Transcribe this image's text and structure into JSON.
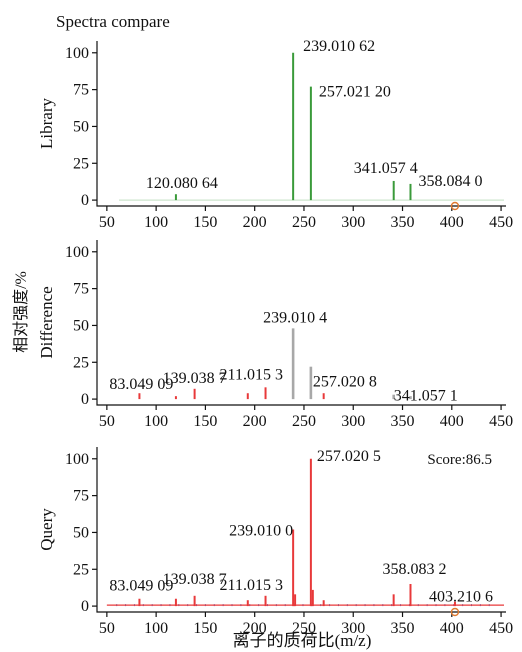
{
  "title": "Spectra compare",
  "shared_ylabel": "相对强度/%",
  "shared_xlabel": "离子的质荷比(m/z)",
  "colors": {
    "library": "#3a9a3a",
    "difference": "#a8a8a8",
    "query": "#e8393a",
    "query_minor": "#4a67c8",
    "axis": "#111111"
  },
  "chart_data": [
    {
      "type": "bar",
      "panel": "library",
      "ylabel": "Library",
      "xlim": [
        40,
        455
      ],
      "ylim": [
        -4,
        108
      ],
      "xticks": [
        50,
        100,
        150,
        200,
        250,
        300,
        350,
        400,
        450
      ],
      "yticks": [
        0,
        25,
        50,
        75,
        100
      ],
      "peaks": [
        {
          "x": 120.08064,
          "y": 4
        },
        {
          "x": 239.01062,
          "y": 100
        },
        {
          "x": 257.0212,
          "y": 77
        },
        {
          "x": 341.0574,
          "y": 13
        },
        {
          "x": 358.084,
          "y": 11
        }
      ],
      "labels": [
        {
          "text": "120.080 64",
          "x": 120.08,
          "y": 4
        },
        {
          "text": "239.010 62",
          "x": 239.01,
          "y": 100
        },
        {
          "text": "257.021 20",
          "x": 257.02,
          "y": 77
        },
        {
          "text": "341.057 4",
          "x": 341.06,
          "y": 13
        },
        {
          "text": "358.084 0",
          "x": 358.08,
          "y": 11
        }
      ]
    },
    {
      "type": "bar",
      "panel": "difference",
      "ylabel": "Difference",
      "xlim": [
        40,
        455
      ],
      "ylim": [
        -4,
        108
      ],
      "xticks": [
        50,
        100,
        150,
        200,
        250,
        300,
        350,
        400,
        450
      ],
      "yticks": [
        0,
        25,
        50,
        75,
        100
      ],
      "peaks_gray": [
        {
          "x": 239.0104,
          "y": 48
        },
        {
          "x": 257.0208,
          "y": 22
        },
        {
          "x": 341.0571,
          "y": 3
        },
        {
          "x": 358.08,
          "y": 2
        }
      ],
      "peaks_red": [
        {
          "x": 83.04909,
          "y": 4
        },
        {
          "x": 120.08,
          "y": 2
        },
        {
          "x": 139.0387,
          "y": 7
        },
        {
          "x": 193.0,
          "y": 4
        },
        {
          "x": 211.0153,
          "y": 8
        },
        {
          "x": 270.0,
          "y": 4
        }
      ],
      "labels": [
        {
          "text": "83.049 09",
          "x": 83.05,
          "y": 4
        },
        {
          "text": "139.038 7",
          "x": 139.04,
          "y": 7
        },
        {
          "text": "211.015 3",
          "x": 211.02,
          "y": 8
        },
        {
          "text": "239.010 4",
          "x": 239.01,
          "y": 48
        },
        {
          "text": "257.020 8",
          "x": 257.02,
          "y": 22
        },
        {
          "text": "341.057 1",
          "x": 341.06,
          "y": 3
        }
      ]
    },
    {
      "type": "bar",
      "panel": "query",
      "ylabel": "Query",
      "annotation": "Score:86.5",
      "xlim": [
        40,
        455
      ],
      "ylim": [
        -4,
        108
      ],
      "xticks": [
        50,
        100,
        150,
        200,
        250,
        300,
        350,
        400,
        450
      ],
      "yticks": [
        0,
        25,
        50,
        75,
        100
      ],
      "peaks": [
        {
          "x": 83.04909,
          "y": 5
        },
        {
          "x": 120.08,
          "y": 5
        },
        {
          "x": 139.0387,
          "y": 7
        },
        {
          "x": 193.0,
          "y": 4
        },
        {
          "x": 211.0153,
          "y": 7
        },
        {
          "x": 239.01,
          "y": 52
        },
        {
          "x": 241.0,
          "y": 8
        },
        {
          "x": 257.0205,
          "y": 100
        },
        {
          "x": 259.0,
          "y": 11
        },
        {
          "x": 270.0,
          "y": 4
        },
        {
          "x": 341.0,
          "y": 8
        },
        {
          "x": 358.0832,
          "y": 15
        },
        {
          "x": 403.2106,
          "y": 3
        }
      ],
      "labels": [
        {
          "text": "83.049 09",
          "x": 83.05,
          "y": 5
        },
        {
          "text": "139.038 7",
          "x": 139.04,
          "y": 7
        },
        {
          "text": "211.015 3",
          "x": 211.02,
          "y": 7
        },
        {
          "text": "239.010 0",
          "x": 239.01,
          "y": 52
        },
        {
          "text": "257.020 5",
          "x": 257.02,
          "y": 100
        },
        {
          "text": "358.083 2",
          "x": 358.08,
          "y": 15
        },
        {
          "text": "403.210 6",
          "x": 403.21,
          "y": 3
        }
      ]
    }
  ]
}
